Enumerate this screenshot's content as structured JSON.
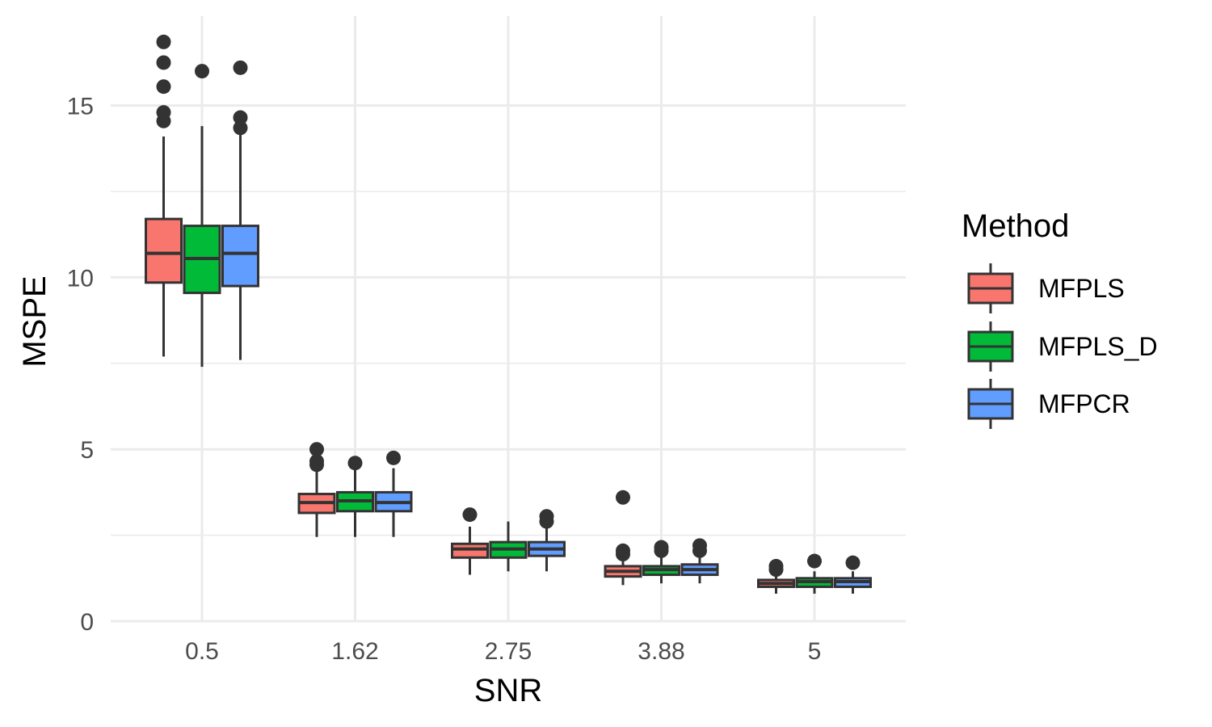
{
  "chart_data": {
    "type": "boxplot",
    "xlabel": "SNR",
    "ylabel": "MSPE",
    "categories": [
      "0.5",
      "1.62",
      "2.75",
      "3.88",
      "5"
    ],
    "ylim": [
      0,
      17.6
    ],
    "y_ticks": [
      0,
      5,
      10,
      15
    ],
    "grid": true,
    "legend": {
      "title": "Method",
      "position": "right"
    },
    "series": [
      {
        "name": "MFPLS",
        "color": "#F8766D",
        "boxes": [
          {
            "min": 7.7,
            "q1": 9.85,
            "median": 10.7,
            "q3": 11.7,
            "max": 14.1,
            "outliers": [
              14.55,
              14.8,
              15.55,
              16.25,
              16.85
            ]
          },
          {
            "min": 2.45,
            "q1": 3.15,
            "median": 3.45,
            "q3": 3.7,
            "max": 4.45,
            "outliers": [
              4.55,
              4.65,
              5.0
            ]
          },
          {
            "min": 1.35,
            "q1": 1.85,
            "median": 2.1,
            "q3": 2.25,
            "max": 2.75,
            "outliers": [
              3.1
            ]
          },
          {
            "min": 1.05,
            "q1": 1.3,
            "median": 1.45,
            "q3": 1.6,
            "max": 1.85,
            "outliers": [
              1.95,
              2.05,
              3.6
            ]
          },
          {
            "min": 0.8,
            "q1": 1.0,
            "median": 1.1,
            "q3": 1.2,
            "max": 1.4,
            "outliers": [
              1.5,
              1.6
            ]
          }
        ]
      },
      {
        "name": "MFPLS_D",
        "color": "#00BA38",
        "boxes": [
          {
            "min": 7.4,
            "q1": 9.55,
            "median": 10.55,
            "q3": 11.5,
            "max": 14.4,
            "outliers": [
              16.0
            ]
          },
          {
            "min": 2.45,
            "q1": 3.2,
            "median": 3.5,
            "q3": 3.75,
            "max": 4.45,
            "outliers": [
              4.6
            ]
          },
          {
            "min": 1.45,
            "q1": 1.85,
            "median": 2.1,
            "q3": 2.3,
            "max": 2.9,
            "outliers": []
          },
          {
            "min": 1.1,
            "q1": 1.35,
            "median": 1.5,
            "q3": 1.6,
            "max": 1.9,
            "outliers": [
              2.05,
              2.15
            ]
          },
          {
            "min": 0.8,
            "q1": 1.0,
            "median": 1.15,
            "q3": 1.25,
            "max": 1.45,
            "outliers": [
              1.75
            ]
          }
        ]
      },
      {
        "name": "MFPCR",
        "color": "#619CFF",
        "boxes": [
          {
            "min": 7.6,
            "q1": 9.75,
            "median": 10.7,
            "q3": 11.5,
            "max": 14.2,
            "outliers": [
              14.35,
              14.65,
              16.1
            ]
          },
          {
            "min": 2.45,
            "q1": 3.2,
            "median": 3.45,
            "q3": 3.75,
            "max": 4.45,
            "outliers": [
              4.75
            ]
          },
          {
            "min": 1.45,
            "q1": 1.9,
            "median": 2.1,
            "q3": 2.3,
            "max": 2.8,
            "outliers": [
              2.9,
              3.05
            ]
          },
          {
            "min": 1.1,
            "q1": 1.35,
            "median": 1.5,
            "q3": 1.65,
            "max": 1.9,
            "outliers": [
              2.05,
              2.2
            ]
          },
          {
            "min": 0.8,
            "q1": 1.0,
            "median": 1.15,
            "q3": 1.25,
            "max": 1.45,
            "outliers": [
              1.7
            ]
          }
        ]
      }
    ]
  }
}
